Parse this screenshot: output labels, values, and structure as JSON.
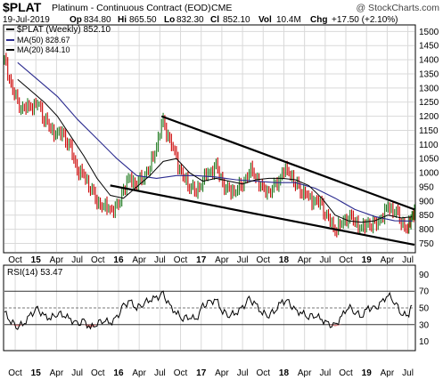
{
  "header": {
    "symbol": "$PLAT",
    "name": "Platinum - Continuous Contract (EOD)",
    "exchange": "CME",
    "copyright": "@ StockCharts.com",
    "date": "19-Jul-2019",
    "op_label": "Op",
    "op": "834.80",
    "hi_label": "Hi",
    "hi": "865.50",
    "lo_label": "Lo",
    "lo": "832.30",
    "cl_label": "Cl",
    "cl": "852.10",
    "vol_label": "Vol",
    "vol": "10.4M",
    "chg_label": "Chg",
    "chg": "+17.50 (+2.10%)"
  },
  "colors": {
    "price": "#000000",
    "up_bar": "#1f7a1f",
    "down_bar": "#cc0000",
    "ma50": "#2b2b8f",
    "ma20": "#000000",
    "channel": "#000000",
    "rsi": "#000000",
    "rsi_fill_oversold": "#d98080",
    "grid": "#d9d9d9"
  },
  "chart_data": [
    {
      "type": "line",
      "title": "",
      "legend": [
        {
          "label": "$PLAT (Weekly) 852.10",
          "color": "#000000"
        },
        {
          "label": "MA(50) 828.67",
          "color": "#2b2b8f"
        },
        {
          "label": "MA(20) 844.10",
          "color": "#000000"
        }
      ],
      "legend_position": "top-left",
      "y_axis": {
        "side": "right",
        "range": [
          720,
          1520
        ],
        "ticks": [
          750,
          800,
          850,
          900,
          950,
          1000,
          1050,
          1100,
          1150,
          1200,
          1250,
          1300,
          1350,
          1400,
          1450,
          1500
        ]
      },
      "x_ticks": [
        "Oct",
        "15",
        "Apr",
        "Jul",
        "Oct",
        "16",
        "Apr",
        "Jul",
        "Oct",
        "17",
        "Apr",
        "Jul",
        "Oct",
        "18",
        "Apr",
        "Jul",
        "Oct",
        "19",
        "Apr",
        "Jul"
      ],
      "x_tick_years": [
        2014.75,
        2015.0,
        2015.25,
        2015.5,
        2015.75,
        2016.0,
        2016.25,
        2016.5,
        2016.75,
        2017.0,
        2017.25,
        2017.5,
        2017.75,
        2018.0,
        2018.25,
        2018.5,
        2018.75,
        2019.0,
        2019.25,
        2019.5
      ],
      "x_range": [
        2014.62,
        2019.58
      ],
      "grid": true,
      "series": [
        {
          "name": "$PLAT (Weekly)",
          "x": [
            2014.62,
            2014.7,
            2014.78,
            2014.86,
            2014.94,
            2015.02,
            2015.1,
            2015.18,
            2015.26,
            2015.34,
            2015.42,
            2015.5,
            2015.58,
            2015.66,
            2015.74,
            2015.82,
            2015.9,
            2015.98,
            2016.06,
            2016.14,
            2016.22,
            2016.3,
            2016.38,
            2016.46,
            2016.54,
            2016.62,
            2016.7,
            2016.78,
            2016.86,
            2016.94,
            2017.02,
            2017.1,
            2017.18,
            2017.26,
            2017.34,
            2017.42,
            2017.5,
            2017.58,
            2017.66,
            2017.74,
            2017.82,
            2017.9,
            2017.98,
            2018.06,
            2018.14,
            2018.22,
            2018.3,
            2018.38,
            2018.46,
            2018.54,
            2018.62,
            2018.7,
            2018.78,
            2018.86,
            2018.94,
            2019.02,
            2019.1,
            2019.18,
            2019.26,
            2019.34,
            2019.42,
            2019.5,
            2019.55
          ],
          "values": [
            1400,
            1310,
            1240,
            1225,
            1235,
            1245,
            1200,
            1150,
            1140,
            1130,
            1080,
            1010,
            990,
            950,
            900,
            880,
            870,
            870,
            940,
            980,
            960,
            990,
            1020,
            1100,
            1180,
            1110,
            1050,
            980,
            960,
            930,
            980,
            1000,
            1020,
            960,
            930,
            940,
            960,
            1010,
            990,
            940,
            930,
            950,
            1000,
            1010,
            960,
            940,
            910,
            900,
            880,
            830,
            800,
            820,
            850,
            830,
            800,
            820,
            810,
            840,
            880,
            870,
            830,
            800,
            852
          ]
        },
        {
          "name": "MA(50)",
          "x": [
            2014.78,
            2015.02,
            2015.26,
            2015.5,
            2015.74,
            2015.98,
            2016.22,
            2016.46,
            2016.7,
            2016.94,
            2017.18,
            2017.42,
            2017.66,
            2017.9,
            2018.14,
            2018.38,
            2018.62,
            2018.86,
            2019.1,
            2019.34,
            2019.55
          ],
          "values": [
            1390,
            1330,
            1270,
            1190,
            1120,
            1050,
            990,
            980,
            990,
            990,
            985,
            975,
            970,
            965,
            965,
            945,
            910,
            870,
            845,
            830,
            829
          ]
        },
        {
          "name": "MA(20)",
          "x": [
            2014.78,
            2014.94,
            2015.1,
            2015.26,
            2015.42,
            2015.58,
            2015.74,
            2015.9,
            2016.06,
            2016.22,
            2016.38,
            2016.54,
            2016.7,
            2016.86,
            2017.02,
            2017.18,
            2017.34,
            2017.5,
            2017.66,
            2017.82,
            2017.98,
            2018.14,
            2018.3,
            2018.46,
            2018.62,
            2018.78,
            2018.94,
            2019.1,
            2019.26,
            2019.42,
            2019.55
          ],
          "values": [
            1330,
            1290,
            1250,
            1200,
            1130,
            1060,
            980,
            920,
            910,
            950,
            990,
            1040,
            1050,
            1000,
            970,
            980,
            970,
            960,
            975,
            980,
            980,
            975,
            955,
            910,
            850,
            830,
            825,
            830,
            850,
            840,
            844
          ]
        }
      ],
      "annotations": [
        {
          "type": "trendline",
          "label": "channel-upper",
          "x": [
            2016.52,
            2019.58
          ],
          "y": [
            1200,
            870
          ]
        },
        {
          "type": "trendline",
          "label": "channel-lower",
          "x": [
            2015.9,
            2019.58
          ],
          "y": [
            955,
            745
          ]
        }
      ]
    },
    {
      "type": "line",
      "title": "",
      "legend": [
        {
          "label": "RSI(14) 53.47",
          "color": "#000000"
        }
      ],
      "legend_position": "top-left",
      "y_axis": {
        "side": "right",
        "range": [
          0,
          100
        ],
        "ticks": [
          10,
          30,
          50,
          70,
          90
        ]
      },
      "reference_lines": [
        30,
        50,
        70
      ],
      "x_ticks": [
        "Oct",
        "15",
        "Apr",
        "Jul",
        "Oct",
        "16",
        "Apr",
        "Jul",
        "Oct",
        "17",
        "Apr",
        "Jul",
        "Oct",
        "18",
        "Apr",
        "Jul",
        "Oct",
        "19",
        "Apr",
        "Jul"
      ],
      "x_tick_years": [
        2014.75,
        2015.0,
        2015.25,
        2015.5,
        2015.75,
        2016.0,
        2016.25,
        2016.5,
        2016.75,
        2017.0,
        2017.25,
        2017.5,
        2017.75,
        2018.0,
        2018.25,
        2018.5,
        2018.75,
        2019.0,
        2019.25,
        2019.5
      ],
      "x_range": [
        2014.62,
        2019.58
      ],
      "series": [
        {
          "name": "RSI(14)",
          "x": [
            2014.62,
            2014.7,
            2014.78,
            2014.86,
            2014.94,
            2015.02,
            2015.1,
            2015.18,
            2015.26,
            2015.34,
            2015.42,
            2015.5,
            2015.58,
            2015.66,
            2015.74,
            2015.82,
            2015.9,
            2015.98,
            2016.06,
            2016.14,
            2016.22,
            2016.3,
            2016.38,
            2016.46,
            2016.54,
            2016.62,
            2016.7,
            2016.78,
            2016.86,
            2016.94,
            2017.02,
            2017.1,
            2017.18,
            2017.26,
            2017.34,
            2017.42,
            2017.5,
            2017.58,
            2017.66,
            2017.74,
            2017.82,
            2017.9,
            2017.98,
            2018.06,
            2018.14,
            2018.22,
            2018.3,
            2018.38,
            2018.46,
            2018.54,
            2018.62,
            2018.7,
            2018.78,
            2018.86,
            2018.94,
            2019.02,
            2019.1,
            2019.18,
            2019.26,
            2019.34,
            2019.42,
            2019.5,
            2019.55
          ],
          "values": [
            45,
            34,
            28,
            32,
            42,
            48,
            40,
            38,
            44,
            42,
            36,
            30,
            34,
            26,
            32,
            36,
            32,
            38,
            52,
            58,
            50,
            56,
            60,
            62,
            66,
            52,
            44,
            38,
            40,
            36,
            52,
            56,
            60,
            46,
            42,
            44,
            50,
            60,
            54,
            44,
            42,
            48,
            58,
            56,
            46,
            44,
            40,
            42,
            36,
            30,
            28,
            40,
            52,
            46,
            40,
            50,
            48,
            56,
            66,
            58,
            44,
            40,
            53
          ]
        }
      ]
    }
  ]
}
